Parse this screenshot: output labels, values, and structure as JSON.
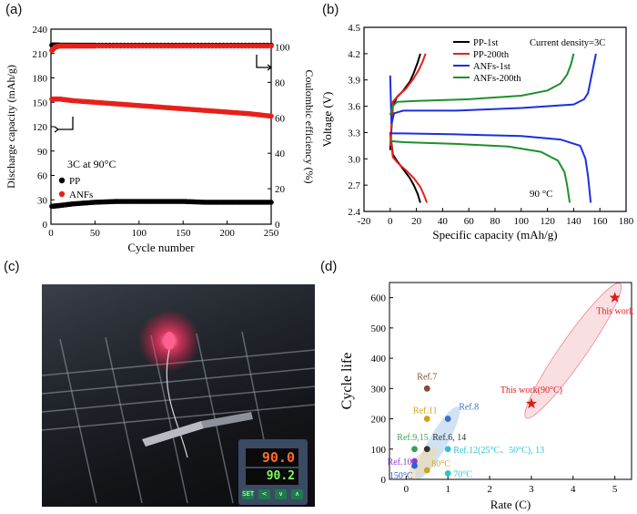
{
  "panels": {
    "a": "(a)",
    "b": "(b)",
    "c": "(c)",
    "d": "(d)"
  },
  "chart_data": [
    {
      "id": "a",
      "type": "scatter",
      "xlabel": "Cycle number",
      "ylabel": "Discharge capacity (mAh/g)",
      "y2label": "Coulombic efficiency (%)",
      "xlim": [
        0,
        250
      ],
      "ylim": [
        0,
        240
      ],
      "y2lim": [
        0,
        110
      ],
      "xticks": [
        0,
        50,
        100,
        150,
        200,
        250
      ],
      "yticks": [
        0,
        30,
        60,
        90,
        120,
        150,
        180,
        210,
        240
      ],
      "y2ticks": [
        0,
        20,
        40,
        60,
        80,
        100
      ],
      "annotation": "3C at 90°C",
      "legend": [
        "PP",
        "ANFs"
      ],
      "series": [
        {
          "name": "PP",
          "axis": "left",
          "color": "#000000",
          "x": [
            1,
            10,
            25,
            50,
            75,
            100,
            125,
            150,
            175,
            200,
            225,
            250
          ],
          "y": [
            22,
            23,
            25,
            27,
            28,
            28,
            28,
            28,
            27,
            27,
            27,
            27
          ]
        },
        {
          "name": "ANFs",
          "axis": "left",
          "color": "#e8201a",
          "x": [
            1,
            10,
            25,
            50,
            75,
            100,
            125,
            150,
            175,
            200,
            225,
            250
          ],
          "y": [
            154,
            154,
            152,
            150,
            148,
            146,
            144,
            142,
            140,
            138,
            136,
            133
          ]
        },
        {
          "name": "PP CE",
          "axis": "right",
          "color": "#000000",
          "x": [
            1,
            5,
            10,
            25,
            50,
            100,
            150,
            200,
            250
          ],
          "y": [
            101,
            101,
            101,
            101,
            101,
            101,
            101,
            101,
            101
          ]
        },
        {
          "name": "ANFs CE",
          "axis": "right",
          "color": "#e8201a",
          "x": [
            1,
            5,
            10,
            25,
            50,
            100,
            150,
            200,
            250
          ],
          "y": [
            98,
            100,
            100.5,
            100.5,
            100.5,
            100.5,
            100.5,
            100.5,
            100.5
          ]
        }
      ]
    },
    {
      "id": "b",
      "type": "line",
      "xlabel": "Specific capacity (mAh/g)",
      "ylabel": "Voltage (V)",
      "xlim": [
        -20,
        180
      ],
      "ylim": [
        2.4,
        4.5
      ],
      "xticks": [
        -20,
        0,
        20,
        40,
        60,
        80,
        100,
        120,
        140,
        160,
        180
      ],
      "yticks": [
        2.4,
        2.7,
        3.0,
        3.3,
        3.6,
        3.9,
        4.2,
        4.5
      ],
      "annotations": [
        "Current density=3C",
        "90 °C"
      ],
      "legend": [
        "PP-1st",
        "PP-200th",
        "ANFs-1st",
        "ANFs-200th"
      ],
      "series": [
        {
          "name": "PP-1st",
          "color": "#000000",
          "charge": [
            [
              0,
              3.1
            ],
            [
              2,
              3.6
            ],
            [
              5,
              3.7
            ],
            [
              10,
              3.78
            ],
            [
              15,
              3.88
            ],
            [
              18,
              3.98
            ],
            [
              21,
              4.1
            ],
            [
              23,
              4.2
            ]
          ],
          "discharge": [
            [
              0,
              3.3
            ],
            [
              2,
              3.05
            ],
            [
              5,
              2.98
            ],
            [
              10,
              2.88
            ],
            [
              15,
              2.78
            ],
            [
              18,
              2.7
            ],
            [
              21,
              2.6
            ],
            [
              23,
              2.5
            ]
          ]
        },
        {
          "name": "PP-200th",
          "color": "#e8201a",
          "charge": [
            [
              0,
              3.15
            ],
            [
              2,
              3.65
            ],
            [
              6,
              3.72
            ],
            [
              12,
              3.8
            ],
            [
              18,
              3.92
            ],
            [
              22,
              4.02
            ],
            [
              25,
              4.12
            ],
            [
              27,
              4.2
            ]
          ],
          "discharge": [
            [
              0,
              3.28
            ],
            [
              2,
              3.02
            ],
            [
              6,
              2.95
            ],
            [
              12,
              2.87
            ],
            [
              18,
              2.78
            ],
            [
              23,
              2.68
            ],
            [
              26,
              2.58
            ],
            [
              28,
              2.5
            ]
          ]
        },
        {
          "name": "ANFs-1st",
          "color": "#1a2fe0",
          "charge": [
            [
              0,
              3.95
            ],
            [
              1,
              3.4
            ],
            [
              3,
              3.52
            ],
            [
              10,
              3.55
            ],
            [
              50,
              3.55
            ],
            [
              100,
              3.58
            ],
            [
              140,
              3.62
            ],
            [
              148,
              3.68
            ],
            [
              151,
              3.75
            ],
            [
              153,
              3.9
            ],
            [
              155,
              4.05
            ],
            [
              157,
              4.2
            ]
          ],
          "discharge": [
            [
              0,
              3.3
            ],
            [
              2,
              3.29
            ],
            [
              10,
              3.29
            ],
            [
              50,
              3.28
            ],
            [
              100,
              3.26
            ],
            [
              130,
              3.22
            ],
            [
              145,
              3.15
            ],
            [
              149,
              3.0
            ],
            [
              151,
              2.8
            ],
            [
              152,
              2.65
            ],
            [
              153,
              2.5
            ]
          ]
        },
        {
          "name": "ANFs-200th",
          "color": "#1f8f2c",
          "charge": [
            [
              0,
              3.5
            ],
            [
              2,
              3.6
            ],
            [
              5,
              3.65
            ],
            [
              20,
              3.66
            ],
            [
              60,
              3.68
            ],
            [
              100,
              3.72
            ],
            [
              120,
              3.78
            ],
            [
              130,
              3.86
            ],
            [
              135,
              3.96
            ],
            [
              138,
              4.08
            ],
            [
              140,
              4.2
            ]
          ],
          "discharge": [
            [
              0,
              3.22
            ],
            [
              2,
              3.2
            ],
            [
              10,
              3.19
            ],
            [
              50,
              3.17
            ],
            [
              90,
              3.14
            ],
            [
              115,
              3.08
            ],
            [
              128,
              2.98
            ],
            [
              133,
              2.85
            ],
            [
              135,
              2.7
            ],
            [
              136,
              2.6
            ],
            [
              137,
              2.5
            ]
          ]
        }
      ]
    },
    {
      "id": "d",
      "type": "scatter",
      "xlabel": "Rate (C)",
      "ylabel": "Cycle life",
      "xlim": [
        -0.4,
        5.4
      ],
      "ylim": [
        0,
        650
      ],
      "xticks": [
        0,
        1,
        2,
        3,
        4,
        5
      ],
      "yticks": [
        0,
        100,
        200,
        300,
        400,
        500,
        600
      ],
      "points": [
        {
          "label": "This work",
          "x": 5,
          "y": 600,
          "color": "#e01a1a",
          "marker": "star"
        },
        {
          "label": "This work(90°C)",
          "x": 3,
          "y": 250,
          "color": "#e01a1a",
          "marker": "star"
        },
        {
          "label": "Ref.7",
          "x": 0.5,
          "y": 300,
          "color": "#8a4a3a",
          "marker": "circle"
        },
        {
          "label": "Ref.11",
          "x": 0.5,
          "y": 200,
          "color": "#d4a017",
          "marker": "circle"
        },
        {
          "label": "Ref.8",
          "x": 1.0,
          "y": 200,
          "color": "#3c6fcf",
          "marker": "circle"
        },
        {
          "label": "Ref.9,15",
          "x": 0.2,
          "y": 100,
          "color": "#3aa055",
          "marker": "circle"
        },
        {
          "label": "Ref.6, 14",
          "x": 0.5,
          "y": 100,
          "color": "#333333",
          "marker": "circle"
        },
        {
          "label": "Ref.12(25°C、50°C), 13",
          "x": 1.0,
          "y": 100,
          "color": "#2fc0d8",
          "marker": "circle"
        },
        {
          "label": "Ref.10",
          "x": 0.2,
          "y": 60,
          "color": "#8a3fc9",
          "marker": "circle"
        },
        {
          "label": "80°C",
          "x": 0.5,
          "y": 30,
          "color": "#c8a42a",
          "marker": "circle"
        },
        {
          "label": "150°C",
          "x": 0.2,
          "y": 45,
          "color": "#2a5fd8",
          "marker": "circle"
        },
        {
          "label": "70°C",
          "x": 1.0,
          "y": 20,
          "color": "#28c4d0",
          "marker": "circle"
        }
      ]
    }
  ],
  "photo": {
    "meter_top": "90.0",
    "meter_bottom": "90.2",
    "buttons": [
      "SET",
      "<",
      "∨",
      "∧"
    ]
  }
}
